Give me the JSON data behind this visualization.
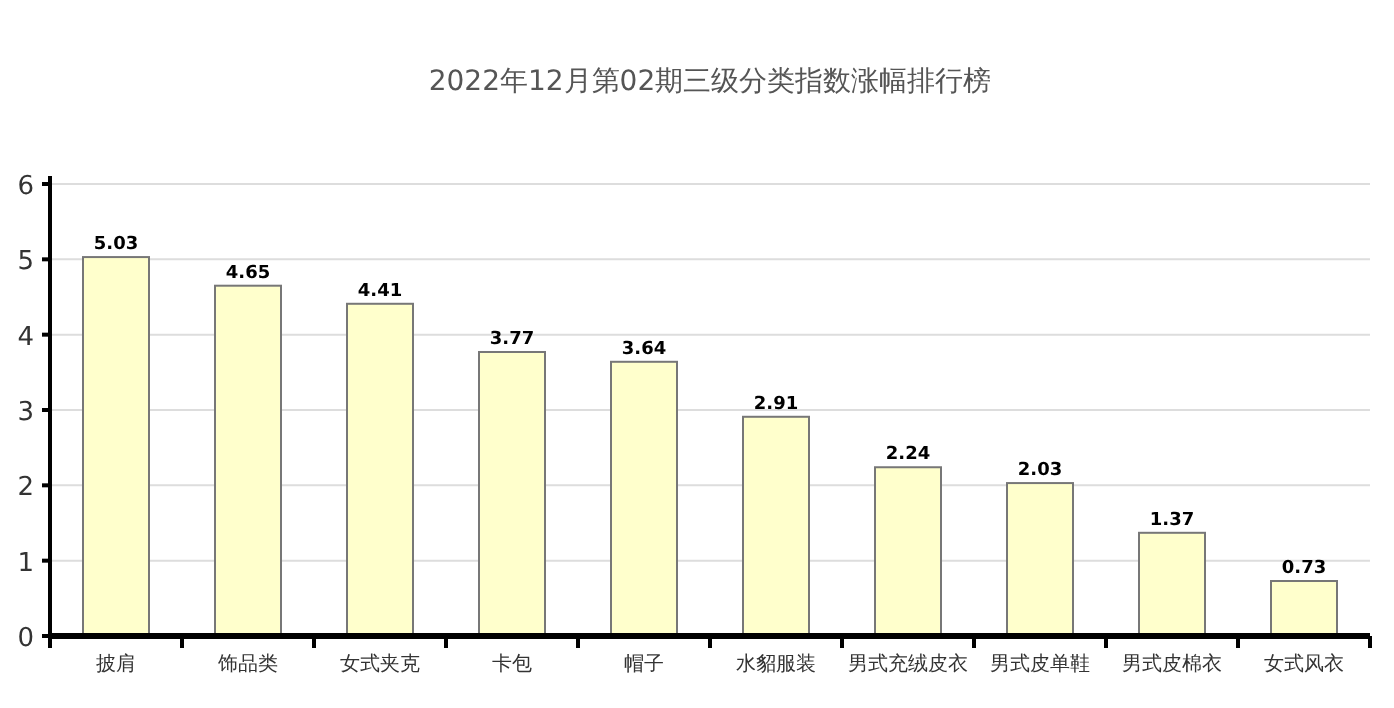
{
  "chart_data": {
    "type": "bar",
    "title": "2022年12月第02期三级分类指数涨幅排行榜",
    "categories": [
      "披肩",
      "饰品类",
      "女式夹克",
      "卡包",
      "帽子",
      "水貂服装",
      "男式充绒皮衣",
      "男式皮单鞋",
      "男式皮棉衣",
      "女式风衣"
    ],
    "values": [
      5.03,
      4.65,
      4.41,
      3.77,
      3.64,
      2.91,
      2.24,
      2.03,
      1.37,
      0.73
    ],
    "color": "#ffffcc",
    "ylim": [
      0,
      6
    ],
    "yticks": [
      0,
      1,
      2,
      3,
      4,
      5,
      6
    ],
    "grid": "y",
    "data_labels": true
  }
}
